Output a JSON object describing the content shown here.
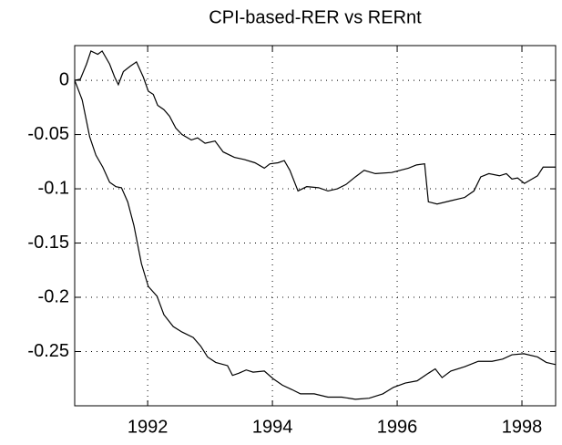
{
  "chart_data": {
    "type": "line",
    "title": "CPI-based-RER vs RERnt",
    "grid": true,
    "color": "#000000",
    "xlim": [
      1990.83,
      1998.54
    ],
    "ylim": [
      -0.3,
      0.032
    ],
    "xticks": [
      1992,
      1994,
      1996,
      1998
    ],
    "yticks": [
      0,
      -0.05,
      -0.1,
      -0.15,
      -0.2,
      -0.25
    ],
    "series": [
      {
        "color": "#000000",
        "x": [
          1990.83,
          1990.92,
          1991.02,
          1991.09,
          1991.2,
          1991.27,
          1991.39,
          1991.47,
          1991.53,
          1991.61,
          1991.72,
          1991.82,
          1991.93,
          1992.01,
          1992.09,
          1992.16,
          1992.26,
          1992.35,
          1992.45,
          1992.55,
          1992.7,
          1992.8,
          1992.92,
          1993.08,
          1993.21,
          1993.39,
          1993.55,
          1993.72,
          1993.87,
          1993.96,
          1994.09,
          1994.19,
          1994.28,
          1994.41,
          1994.55,
          1994.74,
          1994.89,
          1995.04,
          1995.18,
          1995.33,
          1995.47,
          1995.65,
          1995.91,
          1996.18,
          1996.31,
          1996.44,
          1996.5,
          1996.64,
          1996.86,
          1997.08,
          1997.23,
          1997.34,
          1997.47,
          1997.64,
          1997.75,
          1997.84,
          1997.93,
          1998.04,
          1998.16,
          1998.25,
          1998.34,
          1998.54
        ],
        "values": [
          0,
          0.001,
          0.015,
          0.027,
          0.024,
          0.027,
          0.015,
          0.003,
          -0.004,
          0.008,
          0.013,
          0.017,
          0.003,
          -0.01,
          -0.013,
          -0.023,
          -0.027,
          -0.033,
          -0.044,
          -0.05,
          -0.055,
          -0.053,
          -0.058,
          -0.056,
          -0.066,
          -0.071,
          -0.073,
          -0.076,
          -0.081,
          -0.077,
          -0.076,
          -0.074,
          -0.083,
          -0.102,
          -0.098,
          -0.099,
          -0.102,
          -0.1,
          -0.096,
          -0.089,
          -0.083,
          -0.086,
          -0.085,
          -0.081,
          -0.078,
          -0.077,
          -0.112,
          -0.114,
          -0.111,
          -0.108,
          -0.102,
          -0.089,
          -0.086,
          -0.088,
          -0.086,
          -0.091,
          -0.09,
          -0.095,
          -0.091,
          -0.088,
          -0.08,
          -0.08
        ]
      },
      {
        "color": "#000000",
        "x": [
          1990.83,
          1990.95,
          1991.07,
          1991.17,
          1991.28,
          1991.39,
          1991.49,
          1991.58,
          1991.68,
          1991.78,
          1991.9,
          1992.01,
          1992.15,
          1992.26,
          1992.41,
          1992.55,
          1992.73,
          1992.85,
          1992.96,
          1993.09,
          1993.28,
          1993.36,
          1993.46,
          1993.58,
          1993.69,
          1993.87,
          1994.01,
          1994.16,
          1994.31,
          1994.45,
          1994.67,
          1994.89,
          1995.11,
          1995.33,
          1995.55,
          1995.77,
          1995.94,
          1996.13,
          1996.32,
          1996.5,
          1996.61,
          1996.72,
          1996.86,
          1997.08,
          1997.3,
          1997.52,
          1997.69,
          1997.84,
          1998.03,
          1998.25,
          1998.39,
          1998.54
        ],
        "values": [
          0,
          -0.018,
          -0.052,
          -0.069,
          -0.08,
          -0.094,
          -0.098,
          -0.099,
          -0.112,
          -0.134,
          -0.169,
          -0.19,
          -0.199,
          -0.216,
          -0.227,
          -0.232,
          -0.237,
          -0.245,
          -0.255,
          -0.26,
          -0.263,
          -0.272,
          -0.27,
          -0.267,
          -0.269,
          -0.268,
          -0.275,
          -0.281,
          -0.285,
          -0.289,
          -0.289,
          -0.292,
          -0.292,
          -0.294,
          -0.293,
          -0.289,
          -0.283,
          -0.279,
          -0.277,
          -0.27,
          -0.266,
          -0.274,
          -0.268,
          -0.264,
          -0.259,
          -0.259,
          -0.257,
          -0.253,
          -0.252,
          -0.255,
          -0.26,
          -0.262
        ]
      }
    ]
  }
}
